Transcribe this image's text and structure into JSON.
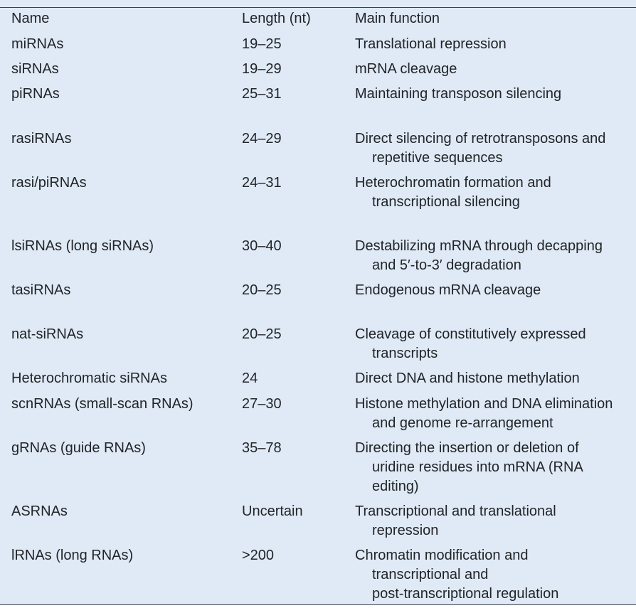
{
  "table": {
    "headers": {
      "name": "Name",
      "length": "Length (nt)",
      "function": "Main function"
    },
    "rows": [
      {
        "name": "miRNAs",
        "length": "19–25",
        "function": [
          "Translational repression"
        ]
      },
      {
        "name": "siRNAs",
        "length": "19–29",
        "function": [
          "mRNA cleavage"
        ]
      },
      {
        "name": "piRNAs",
        "length": "25–31",
        "function": [
          "Maintaining transposon silencing"
        ]
      },
      {
        "name": "rasiRNAs",
        "length": "24–29",
        "function": [
          "Direct silencing of retrotransposons and",
          "repetitive sequences"
        ]
      },
      {
        "name": "rasi/piRNAs",
        "length": "24–31",
        "function": [
          "Heterochromatin formation and",
          "transcriptional silencing"
        ]
      },
      {
        "name": "lsiRNAs (long siRNAs)",
        "length": "30–40",
        "function": [
          "Destabilizing mRNA through decapping",
          "and 5′-to-3′ degradation"
        ]
      },
      {
        "name": "tasiRNAs",
        "length": "20–25",
        "function": [
          "Endogenous mRNA cleavage"
        ]
      },
      {
        "name": "nat-siRNAs",
        "length": "20–25",
        "function": [
          "Cleavage of constitutively expressed",
          "transcripts"
        ]
      },
      {
        "name": "Heterochromatic siRNAs",
        "length": "24",
        "function": [
          "Direct DNA and histone methylation"
        ]
      },
      {
        "name": "scnRNAs (small-scan RNAs)",
        "length": "27–30",
        "function": [
          "Histone methylation and DNA elimination",
          "and genome re-arrangement"
        ]
      },
      {
        "name": "gRNAs (guide RNAs)",
        "length": "35–78",
        "function": [
          "Directing the insertion or deletion of",
          "uridine residues into mRNA (RNA",
          "editing)"
        ]
      },
      {
        "name": "ASRNAs",
        "length": "Uncertain",
        "function": [
          "Transcriptional and translational",
          "repression"
        ]
      },
      {
        "name": "lRNAs (long RNAs)",
        "length": ">200",
        "function": [
          "Chromatin modification and",
          "transcriptional and",
          "post-transcriptional regulation"
        ]
      }
    ]
  }
}
